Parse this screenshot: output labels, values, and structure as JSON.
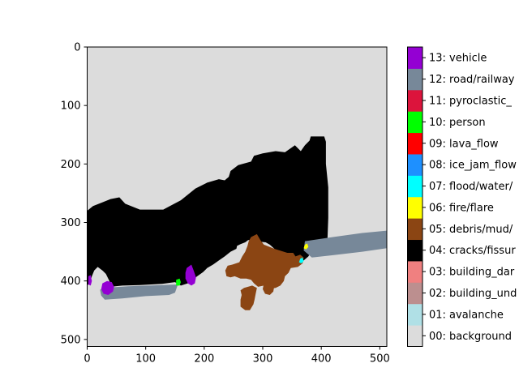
{
  "chart_data": {
    "type": "heatmap",
    "title": "",
    "xlabel": "",
    "ylabel": "",
    "xlim": [
      0,
      512
    ],
    "ylim": [
      512,
      0
    ],
    "x_ticks": [
      0,
      100,
      200,
      300,
      400,
      500
    ],
    "y_ticks": [
      0,
      100,
      200,
      300,
      400,
      500
    ],
    "grid": false,
    "description": "segmentation mask over 512x512 pixels",
    "legend_placement": "right colorbar",
    "classes": [
      {
        "id": 0,
        "label": "00: background",
        "color": "#dcdcdc"
      },
      {
        "id": 1,
        "label": "01: avalanche",
        "color": "#b0e0e6"
      },
      {
        "id": 2,
        "label": "02: building_und",
        "color": "#bc8f8f"
      },
      {
        "id": 3,
        "label": "03: building_dar",
        "color": "#f08080"
      },
      {
        "id": 4,
        "label": "04: cracks/fissur",
        "color": "#000000"
      },
      {
        "id": 5,
        "label": "05: debris/mud/",
        "color": "#8b4513"
      },
      {
        "id": 6,
        "label": "06: fire/flare",
        "color": "#ffff00"
      },
      {
        "id": 7,
        "label": "07: flood/water/",
        "color": "#00ffff"
      },
      {
        "id": 8,
        "label": "08: ice_jam_flow",
        "color": "#1e90ff"
      },
      {
        "id": 9,
        "label": "09: lava_flow",
        "color": "#ff0000"
      },
      {
        "id": 10,
        "label": "10: person",
        "color": "#00ff00"
      },
      {
        "id": 11,
        "label": "11: pyroclastic_",
        "color": "#dc143c"
      },
      {
        "id": 12,
        "label": "12: road/railway",
        "color": "#778899"
      },
      {
        "id": 13,
        "label": "13: vehicle",
        "color": "#9400d3"
      }
    ],
    "regions": [
      {
        "class_id": 4,
        "points": [
          [
            0,
            280
          ],
          [
            10,
            272
          ],
          [
            25,
            266
          ],
          [
            40,
            260
          ],
          [
            55,
            257
          ],
          [
            65,
            268
          ],
          [
            90,
            278
          ],
          [
            130,
            278
          ],
          [
            160,
            262
          ],
          [
            185,
            242
          ],
          [
            205,
            232
          ],
          [
            225,
            226
          ],
          [
            235,
            228
          ],
          [
            242,
            222
          ],
          [
            245,
            212
          ],
          [
            258,
            202
          ],
          [
            280,
            196
          ],
          [
            285,
            186
          ],
          [
            300,
            182
          ],
          [
            322,
            178
          ],
          [
            338,
            180
          ],
          [
            355,
            168
          ],
          [
            365,
            178
          ],
          [
            372,
            168
          ],
          [
            380,
            160
          ],
          [
            382,
            153
          ],
          [
            405,
            153
          ],
          [
            408,
            162
          ],
          [
            408,
            200
          ],
          [
            412,
            240
          ],
          [
            412,
            292
          ],
          [
            410,
            345
          ],
          [
            405,
            350
          ],
          [
            400,
            343
          ],
          [
            385,
            347
          ],
          [
            378,
            358
          ],
          [
            370,
            365
          ],
          [
            362,
            368
          ],
          [
            358,
            362
          ],
          [
            345,
            357
          ],
          [
            330,
            352
          ],
          [
            320,
            345
          ],
          [
            312,
            338
          ],
          [
            305,
            334
          ],
          [
            295,
            333
          ],
          [
            285,
            330
          ],
          [
            275,
            330
          ],
          [
            270,
            334
          ],
          [
            262,
            337
          ],
          [
            256,
            340
          ],
          [
            255,
            345
          ],
          [
            245,
            350
          ],
          [
            235,
            358
          ],
          [
            225,
            365
          ],
          [
            215,
            372
          ],
          [
            205,
            378
          ],
          [
            198,
            385
          ],
          [
            188,
            392
          ],
          [
            180,
            398
          ],
          [
            172,
            404
          ],
          [
            160,
            408
          ],
          [
            150,
            402
          ],
          [
            128,
            405
          ],
          [
            90,
            407
          ],
          [
            60,
            408
          ],
          [
            40,
            410
          ],
          [
            38,
            400
          ],
          [
            32,
            388
          ],
          [
            26,
            382
          ],
          [
            18,
            376
          ],
          [
            12,
            382
          ],
          [
            8,
            392
          ],
          [
            5,
            402
          ],
          [
            0,
            408
          ]
        ]
      },
      {
        "class_id": 12,
        "points": [
          [
            28,
            412
          ],
          [
            70,
            409
          ],
          [
            130,
            407
          ],
          [
            155,
            406
          ],
          [
            150,
            420
          ],
          [
            140,
            424
          ],
          [
            100,
            426
          ],
          [
            60,
            430
          ],
          [
            30,
            432
          ],
          [
            24,
            425
          ],
          [
            22,
            415
          ]
        ]
      },
      {
        "class_id": 12,
        "points": [
          [
            372,
            332
          ],
          [
            420,
            325
          ],
          [
            470,
            318
          ],
          [
            512,
            314
          ],
          [
            512,
            344
          ],
          [
            470,
            350
          ],
          [
            420,
            356
          ],
          [
            384,
            360
          ],
          [
            370,
            348
          ]
        ]
      },
      {
        "class_id": 5,
        "points": [
          [
            280,
            325
          ],
          [
            290,
            320
          ],
          [
            296,
            330
          ],
          [
            302,
            338
          ],
          [
            320,
            345
          ],
          [
            342,
            352
          ],
          [
            352,
            352
          ],
          [
            356,
            358
          ],
          [
            364,
            355
          ],
          [
            370,
            360
          ],
          [
            368,
            370
          ],
          [
            360,
            376
          ],
          [
            348,
            378
          ],
          [
            344,
            386
          ],
          [
            338,
            392
          ],
          [
            336,
            400
          ],
          [
            330,
            408
          ],
          [
            322,
            412
          ],
          [
            310,
            414
          ],
          [
            302,
            408
          ],
          [
            292,
            410
          ],
          [
            285,
            404
          ],
          [
            280,
            398
          ],
          [
            272,
            396
          ],
          [
            262,
            396
          ],
          [
            252,
            392
          ],
          [
            245,
            394
          ],
          [
            238,
            392
          ],
          [
            236,
            382
          ],
          [
            240,
            374
          ],
          [
            248,
            372
          ],
          [
            260,
            368
          ],
          [
            265,
            358
          ],
          [
            270,
            350
          ],
          [
            274,
            340
          ],
          [
            276,
            332
          ]
        ]
      },
      {
        "class_id": 5,
        "points": [
          [
            268,
            412
          ],
          [
            282,
            408
          ],
          [
            290,
            412
          ],
          [
            288,
            422
          ],
          [
            286,
            432
          ],
          [
            284,
            440
          ],
          [
            278,
            450
          ],
          [
            270,
            450
          ],
          [
            262,
            444
          ],
          [
            262,
            432
          ],
          [
            264,
            424
          ],
          [
            262,
            416
          ]
        ]
      },
      {
        "class_id": 5,
        "points": [
          [
            302,
            404
          ],
          [
            312,
            402
          ],
          [
            320,
            408
          ],
          [
            318,
            418
          ],
          [
            312,
            424
          ],
          [
            304,
            422
          ],
          [
            300,
            414
          ]
        ]
      },
      {
        "class_id": 13,
        "points": [
          [
            26,
            404
          ],
          [
            34,
            400
          ],
          [
            42,
            402
          ],
          [
            46,
            410
          ],
          [
            44,
            418
          ],
          [
            36,
            424
          ],
          [
            28,
            422
          ],
          [
            24,
            414
          ]
        ]
      },
      {
        "class_id": 13,
        "points": [
          [
            170,
            378
          ],
          [
            178,
            372
          ],
          [
            182,
            382
          ],
          [
            186,
            394
          ],
          [
            184,
            404
          ],
          [
            178,
            408
          ],
          [
            172,
            404
          ],
          [
            168,
            396
          ],
          [
            168,
            386
          ]
        ]
      },
      {
        "class_id": 13,
        "points": [
          [
            2,
            392
          ],
          [
            6,
            390
          ],
          [
            8,
            400
          ],
          [
            6,
            408
          ],
          [
            2,
            406
          ]
        ]
      },
      {
        "class_id": 10,
        "points": [
          [
            152,
            398
          ],
          [
            158,
            396
          ],
          [
            160,
            402
          ],
          [
            158,
            408
          ],
          [
            152,
            408
          ]
        ]
      },
      {
        "class_id": 6,
        "points": [
          [
            372,
            338
          ],
          [
            376,
            336
          ],
          [
            378,
            342
          ],
          [
            374,
            346
          ],
          [
            370,
            344
          ]
        ]
      },
      {
        "class_id": 7,
        "points": [
          [
            364,
            362
          ],
          [
            368,
            360
          ],
          [
            370,
            366
          ],
          [
            366,
            370
          ],
          [
            362,
            368
          ]
        ]
      }
    ]
  }
}
